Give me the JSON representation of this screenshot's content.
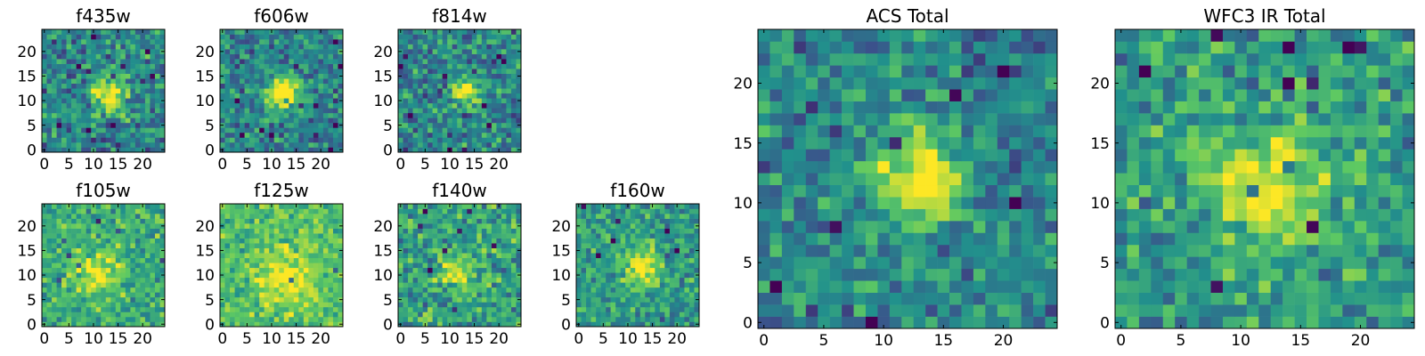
{
  "colormap": [
    "#440154",
    "#3b528b",
    "#21918c",
    "#5ec962",
    "#fde725"
  ],
  "chart_data": [
    {
      "type": "heatmap",
      "title": "f435w",
      "pixels": [
        25,
        25
      ],
      "xticks": [
        0,
        5,
        10,
        15,
        20
      ],
      "yticks": [
        0,
        5,
        10,
        15,
        20
      ],
      "blob": {
        "x": 13.5,
        "y": 11.5,
        "sigma": 2.6,
        "peak": 0.55
      },
      "noise": 0.35,
      "seed": 11
    },
    {
      "type": "heatmap",
      "title": "f606w",
      "pixels": [
        25,
        25
      ],
      "xticks": [
        0,
        5,
        10,
        15,
        20
      ],
      "yticks": [
        0,
        5,
        10,
        15,
        20
      ],
      "blob": {
        "x": 12.5,
        "y": 11.5,
        "sigma": 2.4,
        "peak": 0.7
      },
      "noise": 0.3,
      "seed": 23
    },
    {
      "type": "heatmap",
      "title": "f814w",
      "pixels": [
        25,
        25
      ],
      "xticks": [
        0,
        5,
        10,
        15,
        20
      ],
      "yticks": [
        0,
        5,
        10,
        15,
        20
      ],
      "blob": {
        "x": 13.5,
        "y": 12.0,
        "sigma": 2.0,
        "peak": 0.55
      },
      "noise": 0.35,
      "seed": 37
    },
    {
      "type": "heatmap",
      "title": "f105w",
      "pixels": [
        25,
        25
      ],
      "xticks": [
        0,
        5,
        10,
        15,
        20
      ],
      "yticks": [
        0,
        5,
        10,
        15,
        20
      ],
      "blob": {
        "x": 11.0,
        "y": 10.5,
        "sigma": 3.0,
        "peak": 0.35
      },
      "noise": 0.28,
      "seed": 41,
      "base": 0.62
    },
    {
      "type": "heatmap",
      "title": "f125w",
      "pixels": [
        25,
        25
      ],
      "xticks": [
        0,
        5,
        10,
        15,
        20
      ],
      "yticks": [
        0,
        5,
        10,
        15,
        20
      ],
      "blob": {
        "x": 13.0,
        "y": 9.0,
        "sigma": 4.0,
        "peak": 0.3
      },
      "noise": 0.25,
      "seed": 53,
      "base": 0.7
    },
    {
      "type": "heatmap",
      "title": "f140w",
      "pixels": [
        25,
        25
      ],
      "xticks": [
        0,
        5,
        10,
        15,
        20
      ],
      "yticks": [
        0,
        5,
        10,
        15,
        20
      ],
      "blob": {
        "x": 11.5,
        "y": 11.0,
        "sigma": 2.4,
        "peak": 0.4
      },
      "noise": 0.32,
      "seed": 67,
      "base": 0.58
    },
    {
      "type": "heatmap",
      "title": "f160w",
      "pixels": [
        25,
        25
      ],
      "xticks": [
        0,
        5,
        10,
        15,
        20
      ],
      "yticks": [
        0,
        5,
        10,
        15,
        20
      ],
      "blob": {
        "x": 13.0,
        "y": 11.5,
        "sigma": 2.6,
        "peak": 0.45
      },
      "noise": 0.28,
      "seed": 79,
      "base": 0.55
    },
    {
      "type": "heatmap",
      "title": "ACS Total",
      "pixels": [
        25,
        25
      ],
      "xticks": [
        0,
        5,
        10,
        15,
        20
      ],
      "yticks": [
        0,
        5,
        10,
        15,
        20
      ],
      "blob": {
        "x": 13.0,
        "y": 12.0,
        "sigma": 2.6,
        "peak": 0.6
      },
      "noise": 0.3,
      "seed": 97
    },
    {
      "type": "heatmap",
      "title": "WFC3 IR Total",
      "pixels": [
        25,
        25
      ],
      "xticks": [
        0,
        5,
        10,
        15,
        20
      ],
      "yticks": [
        0,
        5,
        10,
        15,
        20
      ],
      "blob": {
        "x": 12.5,
        "y": 11.5,
        "sigma": 3.0,
        "peak": 0.5
      },
      "noise": 0.3,
      "seed": 113,
      "base": 0.55
    }
  ]
}
